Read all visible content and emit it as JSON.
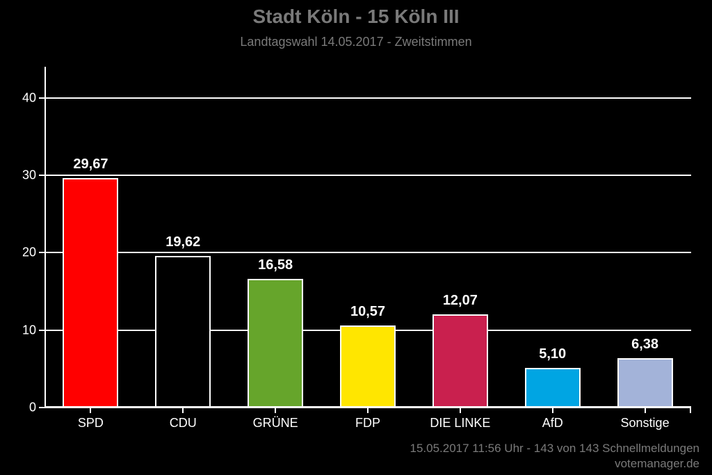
{
  "title": "Stadt Köln - 15 Köln III",
  "subtitle": "Landtagswahl 14.05.2017 - Zweitstimmen",
  "footer_status": "15.05.2017 11:56 Uhr - 143 von 143 Schnellmeldungen",
  "footer_credit": "votemanager.de",
  "chart": {
    "type": "bar",
    "background_color": "#000000",
    "text_color": "#ffffff",
    "muted_color": "#7a7a7a",
    "ylim": [
      0,
      44
    ],
    "yticks": [
      0,
      10,
      20,
      30,
      40
    ],
    "ytick_labels": [
      "0",
      "10",
      "20",
      "30",
      "40"
    ],
    "bar_width_pct": 8.6,
    "bar_border_color": "#ffffff",
    "bar_border_width": 2,
    "label_fontsize": 20,
    "axis_fontsize": 18,
    "categories": [
      {
        "name": "SPD",
        "value": 29.67,
        "label": "29,67",
        "color": "#ff0000"
      },
      {
        "name": "CDU",
        "value": 19.62,
        "label": "19,62",
        "color": "#000000"
      },
      {
        "name": "GRÜNE",
        "value": 16.58,
        "label": "16,58",
        "color": "#66a52b"
      },
      {
        "name": "FDP",
        "value": 10.57,
        "label": "10,57",
        "color": "#ffe600"
      },
      {
        "name": "DIE LINKE",
        "value": 12.07,
        "label": "12,07",
        "color": "#c9204e"
      },
      {
        "name": "AfD",
        "value": 5.1,
        "label": "5,10",
        "color": "#00a5e3"
      },
      {
        "name": "Sonstige",
        "value": 6.38,
        "label": "6,38",
        "color": "#a3b3d9"
      }
    ]
  }
}
